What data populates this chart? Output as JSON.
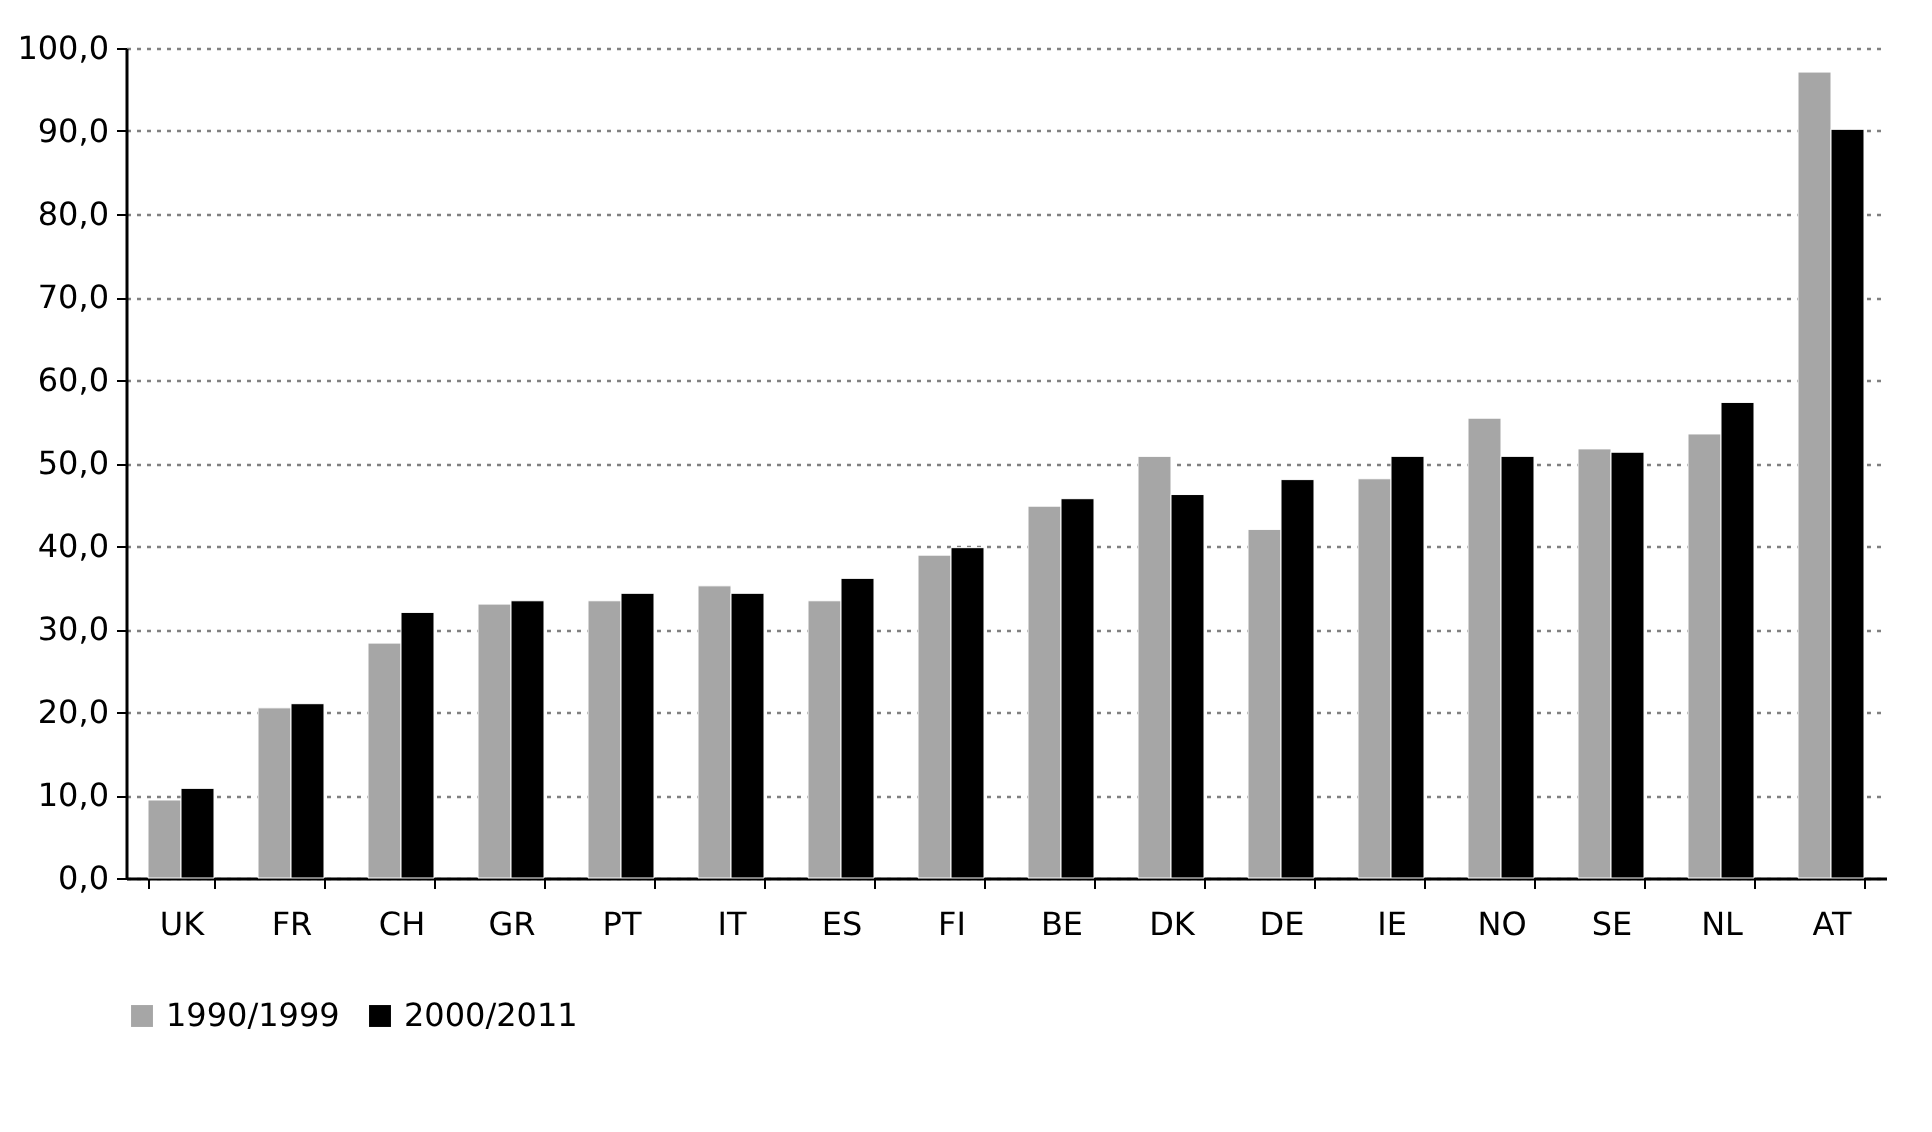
{
  "chart_data": {
    "type": "bar",
    "categories": [
      "UK",
      "FR",
      "CH",
      "GR",
      "PT",
      "IT",
      "ES",
      "FI",
      "BE",
      "DK",
      "DE",
      "IE",
      "NO",
      "SE",
      "NL",
      "AT"
    ],
    "series": [
      {
        "name": "1990/1999",
        "color": "#a6a6a6",
        "values": [
          9.4,
          20.5,
          28.3,
          33.0,
          33.4,
          35.2,
          33.4,
          38.9,
          44.8,
          50.8,
          42.0,
          48.1,
          55.4,
          51.7,
          53.5,
          97.1
        ]
      },
      {
        "name": "2000/2011",
        "color": "#000000",
        "values": [
          10.8,
          21.0,
          32.0,
          33.4,
          34.3,
          34.3,
          36.1,
          39.8,
          45.7,
          46.2,
          48.0,
          50.8,
          50.8,
          51.3,
          57.3,
          90.2
        ]
      }
    ],
    "ylim": [
      0,
      100
    ],
    "yticks": [
      {
        "value": 0,
        "label": "0,0"
      },
      {
        "value": 10,
        "label": "10,0"
      },
      {
        "value": 20,
        "label": "20,0"
      },
      {
        "value": 30,
        "label": "30,0"
      },
      {
        "value": 40,
        "label": "40,0"
      },
      {
        "value": 50,
        "label": "50,0"
      },
      {
        "value": 60,
        "label": "60,0"
      },
      {
        "value": 70,
        "label": "70,0"
      },
      {
        "value": 80,
        "label": "80,0"
      },
      {
        "value": 90,
        "label": "90,0"
      },
      {
        "value": 100,
        "label": "100,0"
      }
    ],
    "grid": "y",
    "legend": "bottom"
  }
}
